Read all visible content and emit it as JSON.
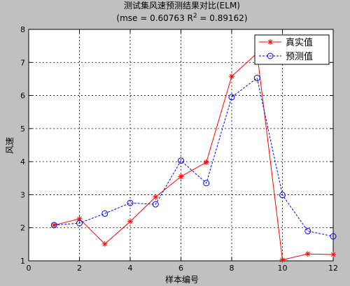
{
  "chart_data": {
    "type": "line",
    "title": "测试集风速预测结果对比(ELM)",
    "subtitle_prefix": "(mse = 0.60763 R",
    "subtitle_sup": "2",
    "subtitle_suffix": " = 0.89162)",
    "xlabel": "样本编号",
    "ylabel": "风速",
    "xlim": [
      0,
      12
    ],
    "ylim": [
      1,
      8
    ],
    "xticks": [
      0,
      2,
      4,
      6,
      8,
      10,
      12
    ],
    "yticks": [
      1,
      2,
      3,
      4,
      5,
      6,
      7,
      8
    ],
    "grid": true,
    "legend_position": "top-right",
    "x": [
      1,
      2,
      3,
      4,
      5,
      6,
      7,
      8,
      9,
      10,
      11,
      12
    ],
    "series": [
      {
        "name": "真实值",
        "color": "#ff0000",
        "marker": "star",
        "line": "solid",
        "values": [
          2.08,
          2.27,
          1.51,
          2.19,
          2.93,
          3.55,
          3.98,
          6.58,
          7.28,
          1.03,
          1.21,
          1.19
        ]
      },
      {
        "name": "预测值",
        "color": "#0000ff",
        "marker": "circle",
        "line": "dashed",
        "values": [
          2.08,
          2.14,
          2.43,
          2.75,
          2.71,
          4.03,
          3.35,
          5.95,
          6.53,
          2.99,
          1.9,
          1.74
        ]
      }
    ]
  }
}
